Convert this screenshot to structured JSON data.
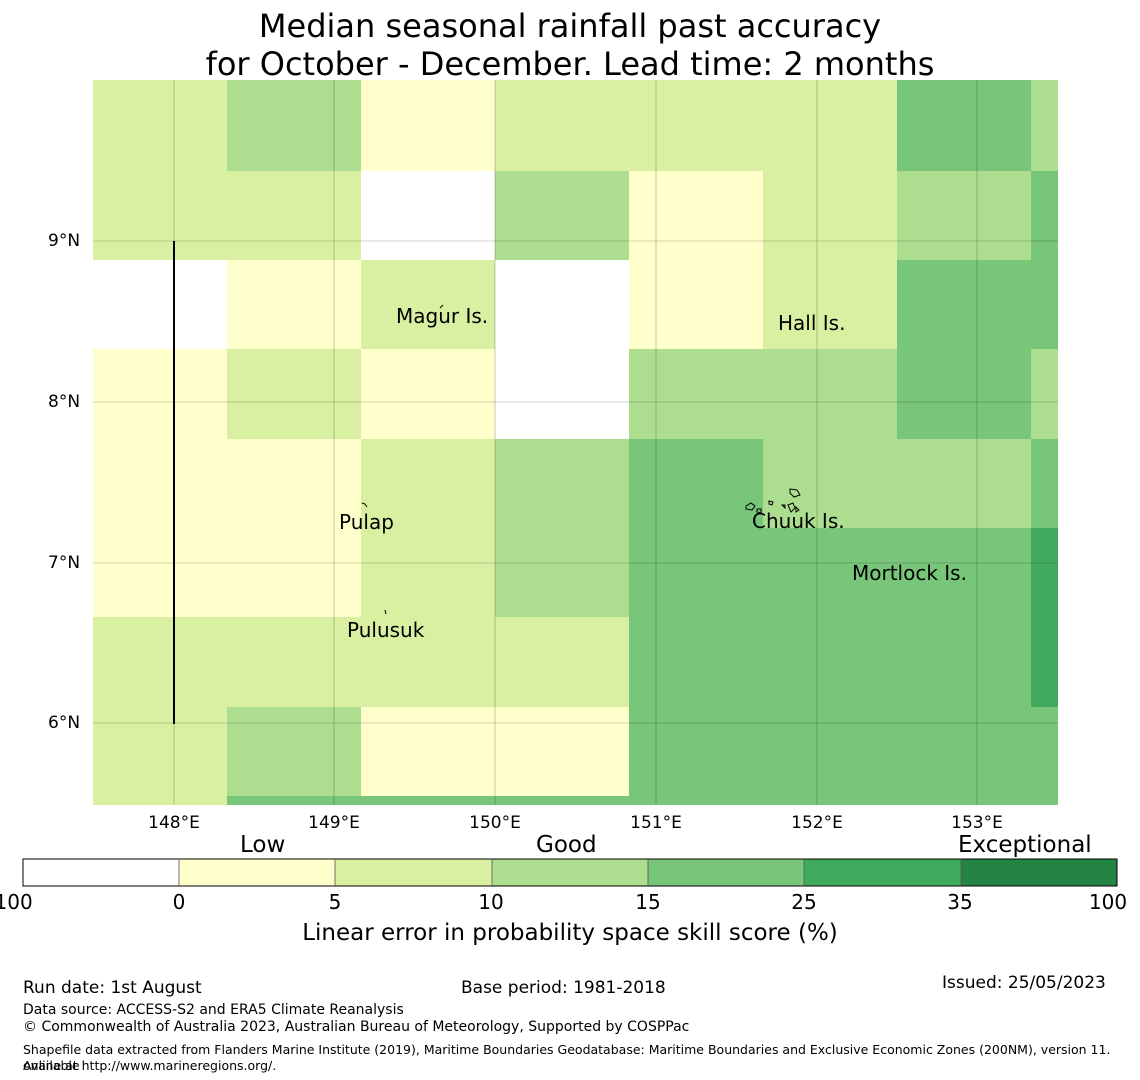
{
  "title": {
    "line1": "Median seasonal rainfall past accuracy",
    "line2": "for October - December. Lead time: 2 months"
  },
  "map": {
    "lon_range": [
      147.5,
      153.5
    ],
    "lat_range": [
      5.5,
      10.0
    ],
    "lon_ticks": [
      "148°E",
      "149°E",
      "150°E",
      "151°E",
      "152°E",
      "153°E"
    ],
    "lat_ticks": [
      "9°N",
      "8°N",
      "7°N",
      "6°N"
    ],
    "places": [
      {
        "name": "Magur Is."
      },
      {
        "name": "Hall Is."
      },
      {
        "name": "Pulap"
      },
      {
        "name": "Chuuk Is."
      },
      {
        "name": "Mortlock Is."
      },
      {
        "name": "Pulusuk"
      }
    ]
  },
  "legend": {
    "categories": [
      "Low",
      "Good",
      "Exceptional"
    ],
    "ticks": [
      "-100",
      "0",
      "5",
      "10",
      "15",
      "25",
      "35",
      "100"
    ],
    "colors": [
      "#ffffff",
      "#ffffcc",
      "#d9f0a3",
      "#addd8e",
      "#78c679",
      "#41ab5d",
      "#238443"
    ],
    "label": "Linear error in probability space skill score (%)"
  },
  "footer": {
    "run_date": "Run date: 1st August",
    "base_period": "Base period: 1981-2018",
    "issued": "Issued: 25/05/2023",
    "data_source": "Data source: ACCESS-S2 and ERA5 Climate Reanalysis",
    "copyright": "© Commonwealth of Australia 2023, Australian Bureau of Meteorology, Supported by COSPPac",
    "shapefile_line1": "Shapefile data extracted from Flanders Marine Institute (2019), Maritime Boundaries Geodatabase: Maritime Boundaries and Exclusive Economic Zones (200NM), version 11. Available",
    "shapefile_line2": "online at http://www.marineregions.org/."
  }
}
